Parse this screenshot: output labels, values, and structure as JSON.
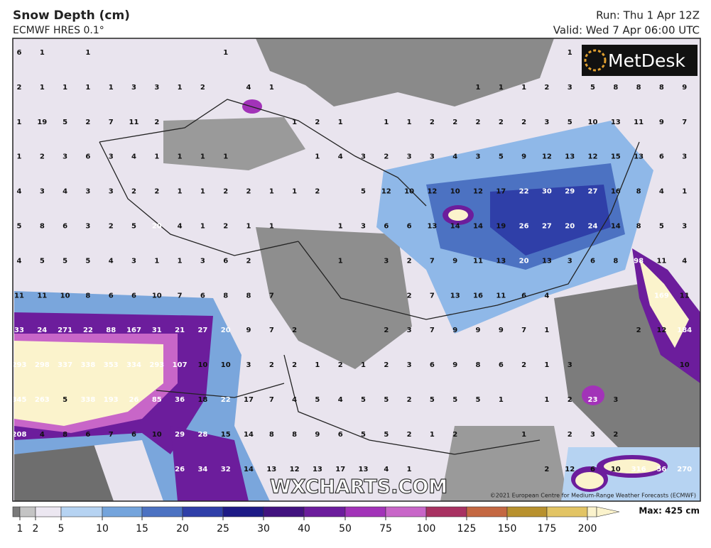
{
  "header": {
    "title": "Snow Depth (cm)",
    "subtitle": "ECMWF HRES 0.1°",
    "run": "Run: Thu 1 Apr 12Z",
    "valid": "Valid: Wed 7 Apr 06:00 UTC"
  },
  "logo": "MetDesk",
  "watermark": "WXCHARTS.COM",
  "copyright": "©2021 European Centre for Medium-Range Weather Forecasts (ECMWF)",
  "map": {
    "grid": [
      [
        6,
        1,
        null,
        1,
        null,
        null,
        null,
        null,
        null,
        1,
        null,
        null,
        null,
        null,
        null,
        null,
        null,
        null,
        null,
        null,
        null,
        null,
        null,
        null,
        1,
        null,
        null,
        null,
        null,
        null
      ],
      [
        2,
        1,
        1,
        1,
        1,
        3,
        3,
        1,
        2,
        null,
        4,
        1,
        null,
        null,
        null,
        null,
        null,
        null,
        null,
        null,
        1,
        1,
        1,
        2,
        3,
        5,
        8,
        8,
        8,
        9
      ],
      [
        1,
        19,
        5,
        2,
        7,
        11,
        2,
        null,
        null,
        null,
        null,
        null,
        1,
        2,
        1,
        null,
        1,
        1,
        2,
        2,
        2,
        2,
        2,
        3,
        5,
        10,
        13,
        11,
        9,
        7
      ],
      [
        1,
        2,
        3,
        6,
        3,
        4,
        1,
        1,
        1,
        1,
        null,
        null,
        null,
        1,
        4,
        3,
        2,
        3,
        3,
        4,
        3,
        5,
        9,
        12,
        13,
        12,
        15,
        13,
        6,
        3
      ],
      [
        4,
        3,
        4,
        3,
        3,
        2,
        2,
        1,
        1,
        2,
        2,
        1,
        1,
        2,
        null,
        5,
        12,
        10,
        12,
        10,
        12,
        17,
        22,
        30,
        29,
        27,
        16,
        8,
        4,
        1
      ],
      [
        5,
        8,
        6,
        3,
        2,
        5,
        20,
        4,
        1,
        2,
        1,
        1,
        null,
        null,
        1,
        3,
        6,
        6,
        13,
        14,
        14,
        19,
        26,
        27,
        20,
        24,
        14,
        8,
        5,
        3
      ],
      [
        4,
        5,
        5,
        5,
        4,
        3,
        1,
        1,
        3,
        6,
        2,
        null,
        null,
        null,
        1,
        null,
        3,
        2,
        7,
        9,
        11,
        13,
        20,
        13,
        3,
        6,
        8,
        98,
        11,
        4
      ],
      [
        11,
        11,
        10,
        8,
        6,
        6,
        10,
        7,
        6,
        8,
        8,
        7,
        null,
        null,
        null,
        null,
        null,
        2,
        7,
        13,
        16,
        11,
        6,
        4,
        null,
        null,
        null,
        null,
        169,
        11
      ],
      [
        33,
        24,
        271,
        22,
        88,
        167,
        31,
        21,
        27,
        20,
        9,
        7,
        2,
        null,
        null,
        null,
        2,
        3,
        7,
        9,
        9,
        9,
        7,
        1,
        null,
        null,
        null,
        2,
        12,
        184
      ],
      [
        293,
        298,
        337,
        338,
        353,
        334,
        293,
        107,
        10,
        10,
        3,
        2,
        2,
        1,
        2,
        1,
        2,
        3,
        6,
        9,
        8,
        6,
        2,
        1,
        3,
        null,
        null,
        null,
        null,
        10
      ],
      [
        345,
        263,
        5,
        338,
        193,
        26,
        85,
        36,
        18,
        22,
        17,
        7,
        4,
        5,
        4,
        5,
        5,
        2,
        5,
        5,
        5,
        1,
        null,
        1,
        2,
        23,
        3,
        null,
        null,
        null
      ],
      [
        208,
        4,
        8,
        6,
        7,
        6,
        10,
        29,
        28,
        15,
        14,
        8,
        8,
        9,
        6,
        5,
        5,
        2,
        1,
        2,
        null,
        null,
        1,
        null,
        2,
        3,
        2,
        null,
        null,
        null
      ],
      [
        null,
        null,
        null,
        null,
        null,
        null,
        null,
        26,
        34,
        32,
        14,
        13,
        12,
        13,
        17,
        13,
        4,
        1,
        null,
        null,
        null,
        null,
        null,
        2,
        12,
        6,
        10,
        316,
        56,
        270
      ]
    ]
  },
  "legend": {
    "labels": [
      1,
      2,
      5,
      10,
      15,
      20,
      25,
      30,
      40,
      50,
      75,
      100,
      125,
      150,
      175,
      200
    ],
    "colors": [
      "#7a7a7a",
      "#c4c4c4",
      "#ece7f1",
      "#b6d3f2",
      "#74a4dc",
      "#4c72c2",
      "#2f3fa8",
      "#1d1a86",
      "#42137f",
      "#6c1d9c",
      "#a233b8",
      "#c866c8",
      "#a83262",
      "#c46842",
      "#b8912e",
      "#e2c464",
      "#fbf3cc"
    ],
    "max": "Max: 425 cm"
  }
}
